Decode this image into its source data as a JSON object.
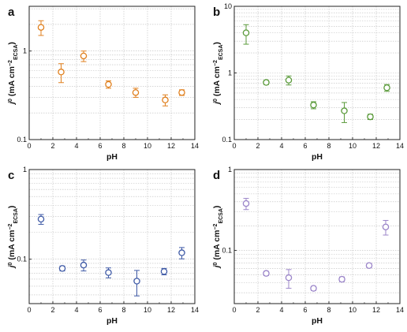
{
  "chart_data": [
    {
      "type": "scatter",
      "panel_label": "a",
      "xlabel": "pH",
      "ylabel": "j⁰ (mA cm⁻²ECSA)",
      "ylabel_main": "j",
      "ylabel_sup": "0",
      "ylabel_units": " (mA cm",
      "ylabel_units_sup": "−2",
      "ylabel_units_sub": "ECSA",
      "ylabel_close": ")",
      "xlim": [
        0,
        14
      ],
      "ylim": [
        0.1,
        3
      ],
      "yscale": "log",
      "xticks": [
        0,
        2,
        4,
        6,
        8,
        10,
        12,
        14
      ],
      "xtick_labels": [
        "0",
        "2",
        "4",
        "6",
        "8",
        "10",
        "12",
        "14"
      ],
      "yticks": [
        0.1,
        1
      ],
      "ytick_labels": [
        "0.1",
        "1"
      ],
      "grid": true,
      "color": "#e0801f",
      "series": [
        {
          "x": [
            1.0,
            2.7,
            4.6,
            6.7,
            9.0,
            11.5,
            12.9
          ],
          "y": [
            1.85,
            0.58,
            0.88,
            0.42,
            0.34,
            0.28,
            0.34
          ],
          "err": [
            0.35,
            0.14,
            0.12,
            0.04,
            0.04,
            0.04,
            0.025
          ]
        }
      ]
    },
    {
      "type": "scatter",
      "panel_label": "b",
      "xlabel": "pH",
      "ylabel_main": "j",
      "ylabel_sup": "0",
      "ylabel_units": " (mA cm",
      "ylabel_units_sup": "−2",
      "ylabel_units_sub": "ECSA",
      "ylabel_close": ")",
      "xlim": [
        0,
        14
      ],
      "ylim": [
        0.1,
        10
      ],
      "yscale": "log",
      "xticks": [
        0,
        2,
        4,
        6,
        8,
        10,
        12,
        14
      ],
      "xtick_labels": [
        "0",
        "2",
        "4",
        "6",
        "8",
        "10",
        "12",
        "14"
      ],
      "yticks": [
        0.1,
        1,
        10
      ],
      "ytick_labels": [
        "0.1",
        "1",
        "10"
      ],
      "grid": true,
      "color": "#5a9a3a",
      "series": [
        {
          "x": [
            1.0,
            2.7,
            4.6,
            6.7,
            9.3,
            11.5,
            12.9
          ],
          "y": [
            4.0,
            0.72,
            0.78,
            0.33,
            0.27,
            0.22,
            0.6
          ],
          "err": [
            1.3,
            0.05,
            0.12,
            0.04,
            0.09,
            0.02,
            0.07
          ]
        }
      ]
    },
    {
      "type": "scatter",
      "panel_label": "c",
      "xlabel": "pH",
      "ylabel_main": "j",
      "ylabel_sup": "0",
      "ylabel_units": " (mA cm",
      "ylabel_units_sup": "−2",
      "ylabel_units_sub": "ECSA",
      "ylabel_close": ")",
      "xlim": [
        0,
        14
      ],
      "ylim": [
        0.03,
        1
      ],
      "yscale": "log",
      "xticks": [
        0,
        2,
        4,
        6,
        8,
        10,
        12,
        14
      ],
      "xtick_labels": [
        "0",
        "2",
        "4",
        "6",
        "8",
        "10",
        "12",
        "14"
      ],
      "yticks": [
        0.1,
        1
      ],
      "ytick_labels": [
        "0.1",
        "1"
      ],
      "grid": true,
      "color": "#3f5aa6",
      "series": [
        {
          "x": [
            1.0,
            2.8,
            4.6,
            6.7,
            9.1,
            11.4,
            12.9
          ],
          "y": [
            0.28,
            0.079,
            0.086,
            0.071,
            0.057,
            0.073,
            0.118
          ],
          "err": [
            0.035,
            0.005,
            0.012,
            0.009,
            0.018,
            0.006,
            0.017
          ]
        }
      ]
    },
    {
      "type": "scatter",
      "panel_label": "d",
      "xlabel": "pH",
      "ylabel_main": "j",
      "ylabel_sup": "0",
      "ylabel_units": " (mA cm",
      "ylabel_units_sup": "−2",
      "ylabel_units_sub": "ECSA",
      "ylabel_close": ")",
      "xlim": [
        0,
        14
      ],
      "ylim": [
        0.02,
        1
      ],
      "yscale": "log",
      "xticks": [
        0,
        2,
        4,
        6,
        8,
        10,
        12,
        14
      ],
      "xtick_labels": [
        "0",
        "2",
        "4",
        "6",
        "8",
        "10",
        "12",
        "14"
      ],
      "yticks": [
        0.1,
        1
      ],
      "ytick_labels": [
        "0.1",
        "1"
      ],
      "grid": true,
      "color": "#9b85c9",
      "series": [
        {
          "x": [
            1.0,
            2.7,
            4.6,
            6.7,
            9.1,
            11.4,
            12.8
          ],
          "y": [
            0.38,
            0.052,
            0.046,
            0.034,
            0.044,
            0.065,
            0.195
          ],
          "err": [
            0.06,
            0.003,
            0.012,
            0.002,
            0.003,
            0.004,
            0.04
          ]
        }
      ]
    }
  ]
}
